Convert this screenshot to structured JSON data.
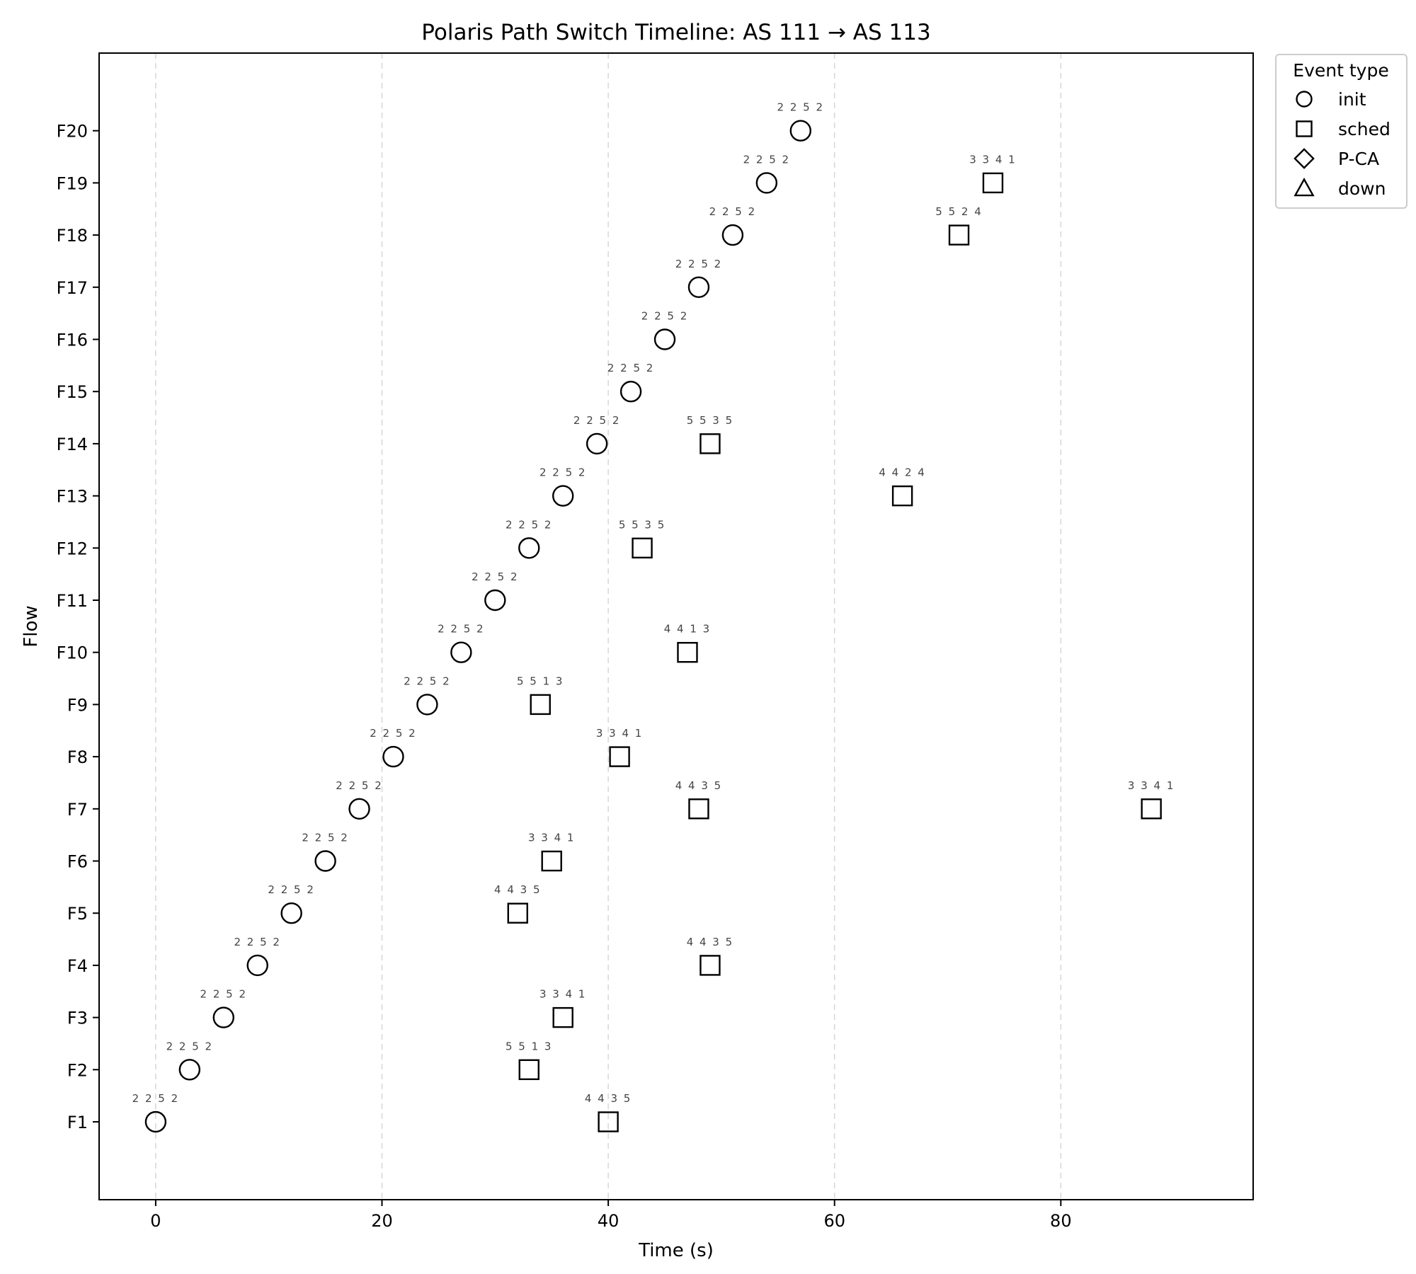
{
  "chart_data": {
    "type": "scatter",
    "title": "Polaris Path Switch Timeline: AS 111 → AS 113",
    "xlabel": "Time (s)",
    "ylabel": "Flow",
    "xlim": [
      -5,
      97
    ],
    "xticks": [
      0,
      20,
      40,
      60,
      80
    ],
    "grid": "x dashed",
    "categories": [
      "F1",
      "F2",
      "F3",
      "F4",
      "F5",
      "F6",
      "F7",
      "F8",
      "F9",
      "F10",
      "F11",
      "F12",
      "F13",
      "F14",
      "F15",
      "F16",
      "F17",
      "F18",
      "F19",
      "F20"
    ],
    "legend": {
      "title": "Event type",
      "placement": "outside-top-right",
      "entries": [
        {
          "label": "init",
          "marker": "circle"
        },
        {
          "label": "sched",
          "marker": "square"
        },
        {
          "label": "P-CA",
          "marker": "diamond"
        },
        {
          "label": "down",
          "marker": "triangle"
        }
      ]
    },
    "series": [
      {
        "name": "init",
        "marker": "circle",
        "points": [
          {
            "x": 0,
            "y": "F1",
            "label": "2 2 5 2"
          },
          {
            "x": 3,
            "y": "F2",
            "label": "2 2 5 2"
          },
          {
            "x": 6,
            "y": "F3",
            "label": "2 2 5 2"
          },
          {
            "x": 9,
            "y": "F4",
            "label": "2 2 5 2"
          },
          {
            "x": 12,
            "y": "F5",
            "label": "2 2 5 2"
          },
          {
            "x": 15,
            "y": "F6",
            "label": "2 2 5 2"
          },
          {
            "x": 18,
            "y": "F7",
            "label": "2 2 5 2"
          },
          {
            "x": 21,
            "y": "F8",
            "label": "2 2 5 2"
          },
          {
            "x": 24,
            "y": "F9",
            "label": "2 2 5 2"
          },
          {
            "x": 27,
            "y": "F10",
            "label": "2 2 5 2"
          },
          {
            "x": 30,
            "y": "F11",
            "label": "2 2 5 2"
          },
          {
            "x": 33,
            "y": "F12",
            "label": "2 2 5 2"
          },
          {
            "x": 36,
            "y": "F13",
            "label": "2 2 5 2"
          },
          {
            "x": 39,
            "y": "F14",
            "label": "2 2 5 2"
          },
          {
            "x": 42,
            "y": "F15",
            "label": "2 2 5 2"
          },
          {
            "x": 45,
            "y": "F16",
            "label": "2 2 5 2"
          },
          {
            "x": 48,
            "y": "F17",
            "label": "2 2 5 2"
          },
          {
            "x": 51,
            "y": "F18",
            "label": "2 2 5 2"
          },
          {
            "x": 54,
            "y": "F19",
            "label": "2 2 5 2"
          },
          {
            "x": 57,
            "y": "F20",
            "label": "2 2 5 2"
          }
        ]
      },
      {
        "name": "sched",
        "marker": "square",
        "points": [
          {
            "x": 40,
            "y": "F1",
            "label": "4 4 3 5"
          },
          {
            "x": 33,
            "y": "F2",
            "label": "5 5 1 3"
          },
          {
            "x": 36,
            "y": "F3",
            "label": "3 3 4 1"
          },
          {
            "x": 49,
            "y": "F4",
            "label": "4 4 3 5"
          },
          {
            "x": 32,
            "y": "F5",
            "label": "4 4 3 5"
          },
          {
            "x": 35,
            "y": "F6",
            "label": "3 3 4 1"
          },
          {
            "x": 48,
            "y": "F7",
            "label": "4 4 3 5"
          },
          {
            "x": 88,
            "y": "F7",
            "label": "3 3 4 1"
          },
          {
            "x": 41,
            "y": "F8",
            "label": "3 3 4 1"
          },
          {
            "x": 34,
            "y": "F9",
            "label": "5 5 1 3"
          },
          {
            "x": 47,
            "y": "F10",
            "label": "4 4 1 3"
          },
          {
            "x": 43,
            "y": "F12",
            "label": "5 5 3 5"
          },
          {
            "x": 66,
            "y": "F13",
            "label": "4 4 2 4"
          },
          {
            "x": 49,
            "y": "F14",
            "label": "5 5 3 5"
          },
          {
            "x": 71,
            "y": "F18",
            "label": "5 5 2 4"
          },
          {
            "x": 74,
            "y": "F19",
            "label": "3 3 4 1"
          }
        ]
      }
    ]
  }
}
